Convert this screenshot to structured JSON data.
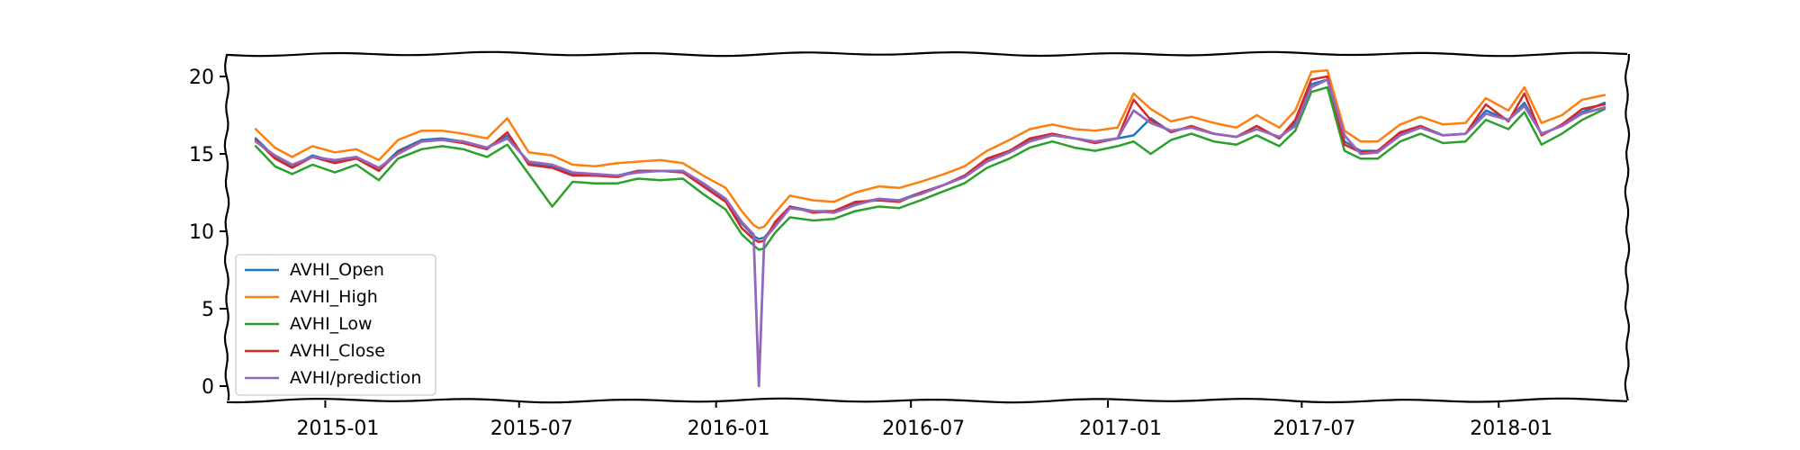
{
  "chart_data": {
    "type": "line",
    "title": "",
    "xlabel": "",
    "ylabel": "",
    "ylim": [
      0,
      21
    ],
    "xlim": [
      "2014-10-01",
      "2018-05-01"
    ],
    "x_ticks": [
      {
        "date": "2015-01-01",
        "label": "2015-01"
      },
      {
        "date": "2015-07-01",
        "label": "2015-07"
      },
      {
        "date": "2016-01-01",
        "label": "2016-01"
      },
      {
        "date": "2016-07-01",
        "label": "2016-07"
      },
      {
        "date": "2017-01-01",
        "label": "2017-01"
      },
      {
        "date": "2017-07-01",
        "label": "2017-07"
      },
      {
        "date": "2018-01-01",
        "label": "2018-01"
      }
    ],
    "y_ticks": [
      0,
      5,
      10,
      15,
      20
    ],
    "grid": false,
    "legend_position": "lower-left",
    "x": [
      "2014-10-28",
      "2014-11-15",
      "2014-12-01",
      "2014-12-20",
      "2015-01-10",
      "2015-01-30",
      "2015-02-20",
      "2015-03-10",
      "2015-04-01",
      "2015-04-20",
      "2015-05-10",
      "2015-06-01",
      "2015-06-20",
      "2015-07-10",
      "2015-08-01",
      "2015-08-20",
      "2015-09-10",
      "2015-10-01",
      "2015-10-20",
      "2015-11-10",
      "2015-12-01",
      "2015-12-20",
      "2016-01-10",
      "2016-01-25",
      "2016-02-05",
      "2016-02-10",
      "2016-02-15",
      "2016-02-25",
      "2016-03-10",
      "2016-04-01",
      "2016-04-20",
      "2016-05-10",
      "2016-06-01",
      "2016-06-20",
      "2016-07-10",
      "2016-08-01",
      "2016-08-20",
      "2016-09-10",
      "2016-10-01",
      "2016-10-20",
      "2016-11-10",
      "2016-12-01",
      "2016-12-20",
      "2017-01-10",
      "2017-01-25",
      "2017-02-10",
      "2017-03-01",
      "2017-03-20",
      "2017-04-10",
      "2017-05-01",
      "2017-05-20",
      "2017-06-10",
      "2017-06-25",
      "2017-07-10",
      "2017-07-25",
      "2017-08-10",
      "2017-08-25",
      "2017-09-10",
      "2017-10-01",
      "2017-10-20",
      "2017-11-10",
      "2017-12-01",
      "2017-12-20",
      "2018-01-10",
      "2018-01-25",
      "2018-02-10",
      "2018-03-01",
      "2018-03-20",
      "2018-04-10"
    ],
    "series": [
      {
        "name": "AVHI_Open",
        "color": "#1f77b4",
        "values": [
          16.0,
          14.8,
          14.2,
          14.9,
          14.5,
          14.8,
          14.0,
          15.2,
          15.9,
          16.0,
          15.8,
          15.4,
          16.2,
          14.4,
          14.2,
          13.7,
          13.6,
          13.6,
          13.9,
          13.9,
          13.9,
          13.0,
          12.0,
          10.5,
          9.7,
          9.5,
          9.6,
          10.4,
          11.6,
          11.3,
          11.3,
          11.8,
          12.1,
          12.0,
          12.5,
          13.0,
          13.6,
          14.6,
          15.2,
          15.9,
          16.3,
          16.0,
          15.8,
          16.0,
          16.2,
          17.3,
          16.4,
          16.8,
          16.3,
          16.1,
          16.8,
          16.0,
          17.0,
          19.5,
          19.8,
          15.8,
          15.2,
          15.2,
          16.3,
          16.8,
          16.2,
          16.3,
          17.8,
          17.2,
          18.3,
          16.3,
          16.8,
          17.7,
          18.3
        ]
      },
      {
        "name": "AVHI_High",
        "color": "#ff7f0e",
        "values": [
          16.6,
          15.4,
          14.8,
          15.5,
          15.1,
          15.3,
          14.6,
          15.9,
          16.5,
          16.5,
          16.3,
          16.0,
          17.3,
          15.1,
          14.9,
          14.3,
          14.2,
          14.4,
          14.5,
          14.6,
          14.4,
          13.6,
          12.8,
          11.3,
          10.4,
          10.2,
          10.3,
          11.2,
          12.3,
          12.0,
          11.9,
          12.5,
          12.9,
          12.8,
          13.2,
          13.7,
          14.2,
          15.2,
          15.9,
          16.6,
          16.9,
          16.6,
          16.5,
          16.7,
          18.9,
          17.9,
          17.1,
          17.4,
          17.0,
          16.7,
          17.5,
          16.7,
          17.8,
          20.3,
          20.4,
          16.5,
          15.8,
          15.8,
          16.9,
          17.4,
          16.9,
          17.0,
          18.6,
          17.8,
          19.3,
          17.0,
          17.5,
          18.5,
          18.8
        ]
      },
      {
        "name": "AVHI_Low",
        "color": "#2ca02c",
        "values": [
          15.5,
          14.2,
          13.7,
          14.3,
          13.8,
          14.3,
          13.3,
          14.7,
          15.3,
          15.5,
          15.3,
          14.8,
          15.6,
          13.7,
          11.6,
          13.2,
          13.1,
          13.1,
          13.4,
          13.3,
          13.4,
          12.4,
          11.4,
          9.8,
          9.1,
          8.8,
          8.9,
          9.9,
          10.9,
          10.7,
          10.8,
          11.3,
          11.6,
          11.5,
          12.0,
          12.6,
          13.1,
          14.1,
          14.7,
          15.4,
          15.8,
          15.4,
          15.2,
          15.5,
          15.8,
          15.0,
          15.9,
          16.3,
          15.8,
          15.6,
          16.2,
          15.5,
          16.5,
          19.0,
          19.3,
          15.2,
          14.7,
          14.7,
          15.8,
          16.3,
          15.7,
          15.8,
          17.2,
          16.6,
          17.7,
          15.6,
          16.3,
          17.2,
          17.9
        ]
      },
      {
        "name": "AVHI_Close",
        "color": "#d62728",
        "values": [
          15.9,
          14.7,
          14.1,
          14.8,
          14.4,
          14.7,
          13.9,
          15.1,
          15.8,
          15.9,
          15.7,
          15.3,
          16.4,
          14.3,
          14.1,
          13.6,
          13.6,
          13.5,
          13.9,
          13.9,
          13.8,
          12.9,
          11.9,
          10.2,
          9.5,
          9.3,
          9.4,
          10.6,
          11.6,
          11.2,
          11.3,
          11.9,
          12.0,
          11.9,
          12.5,
          13.0,
          13.6,
          14.7,
          15.2,
          16.0,
          16.3,
          16.0,
          15.7,
          16.0,
          18.5,
          17.2,
          16.4,
          16.8,
          16.3,
          16.1,
          16.8,
          16.0,
          17.2,
          19.8,
          20.0,
          15.6,
          15.1,
          15.2,
          16.4,
          16.8,
          16.2,
          16.3,
          18.2,
          17.1,
          18.9,
          16.2,
          16.9,
          17.9,
          18.2
        ]
      },
      {
        "name": "AVHI/prediction",
        "color": "#9467bd",
        "values": [
          15.8,
          14.9,
          14.3,
          14.8,
          14.6,
          14.8,
          14.1,
          15.0,
          15.8,
          15.9,
          15.8,
          15.4,
          16.0,
          14.5,
          14.3,
          13.8,
          13.7,
          13.6,
          13.8,
          13.9,
          13.9,
          13.1,
          12.1,
          10.6,
          9.8,
          0.0,
          9.5,
          10.3,
          11.5,
          11.3,
          11.2,
          11.7,
          12.1,
          12.0,
          12.4,
          13.0,
          13.5,
          14.5,
          15.1,
          15.8,
          16.2,
          16.0,
          15.8,
          16.0,
          17.8,
          17.0,
          16.5,
          16.7,
          16.3,
          16.1,
          16.6,
          16.1,
          16.8,
          19.3,
          19.8,
          16.2,
          15.0,
          15.1,
          16.2,
          16.7,
          16.2,
          16.3,
          17.6,
          17.2,
          18.1,
          16.3,
          16.8,
          17.6,
          18.0
        ]
      }
    ]
  }
}
